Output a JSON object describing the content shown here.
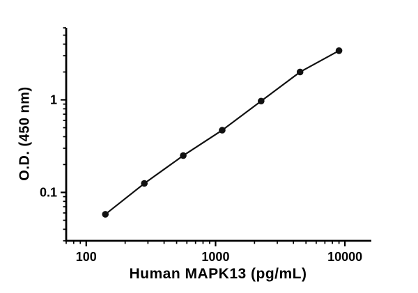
{
  "chart_data": {
    "type": "scatter",
    "title": "",
    "xlabel": "Human MAPK13 (pg/mL)",
    "ylabel": "O.D. (450 nm)",
    "xscale": "log",
    "yscale": "log",
    "xlim": [
      70,
      16000
    ],
    "ylim": [
      0.03,
      6
    ],
    "x_ticks": [
      100,
      1000,
      10000
    ],
    "x_tick_labels": [
      "100",
      "1000",
      "10000"
    ],
    "y_ticks": [
      0.1,
      1
    ],
    "y_tick_labels": [
      "0.1",
      "1"
    ],
    "grid": false,
    "legend": "none",
    "line_through_points": true,
    "axis_color": "#000000",
    "marker_color": "#111111",
    "line_color": "#111111",
    "points": [
      {
        "x": 140.6,
        "y": 0.058
      },
      {
        "x": 281.3,
        "y": 0.125
      },
      {
        "x": 562.5,
        "y": 0.25
      },
      {
        "x": 1125,
        "y": 0.47
      },
      {
        "x": 2250,
        "y": 0.97
      },
      {
        "x": 4500,
        "y": 2.0
      },
      {
        "x": 9000,
        "y": 3.4
      }
    ]
  }
}
